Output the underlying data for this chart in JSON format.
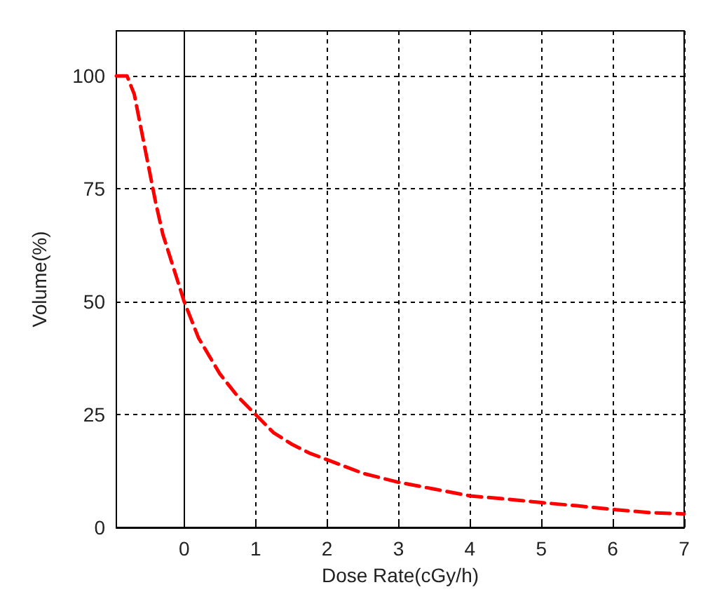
{
  "chart_data": {
    "type": "line",
    "xlabel": "Dose Rate(cGy/h)",
    "ylabel": "Volume(%)",
    "xlim": [
      -0.95,
      7
    ],
    "xticks": [
      0,
      1,
      2,
      3,
      4,
      5,
      6,
      7
    ],
    "ylim": [
      0,
      110
    ],
    "yticks": [
      0,
      25,
      50,
      75,
      100
    ],
    "grid": true,
    "line_style": "dashed",
    "marker": "none",
    "series": [
      {
        "color": "#ff0000",
        "x": [
          -0.95,
          -0.8,
          -0.7,
          -0.6,
          -0.5,
          -0.4,
          -0.3,
          -0.2,
          -0.1,
          0,
          0.1,
          0.2,
          0.35,
          0.5,
          0.75,
          1,
          1.25,
          1.5,
          1.75,
          2,
          2.5,
          3,
          3.5,
          4,
          4.5,
          5,
          5.5,
          6,
          6.5,
          7
        ],
        "values": [
          100,
          100,
          96,
          88,
          80,
          72,
          65,
          60,
          55,
          50,
          46,
          42,
          38,
          34,
          29,
          25,
          21,
          18.5,
          16.5,
          15,
          12,
          10,
          8.5,
          7,
          6.3,
          5.5,
          4.8,
          4,
          3.3,
          3
        ]
      }
    ]
  }
}
